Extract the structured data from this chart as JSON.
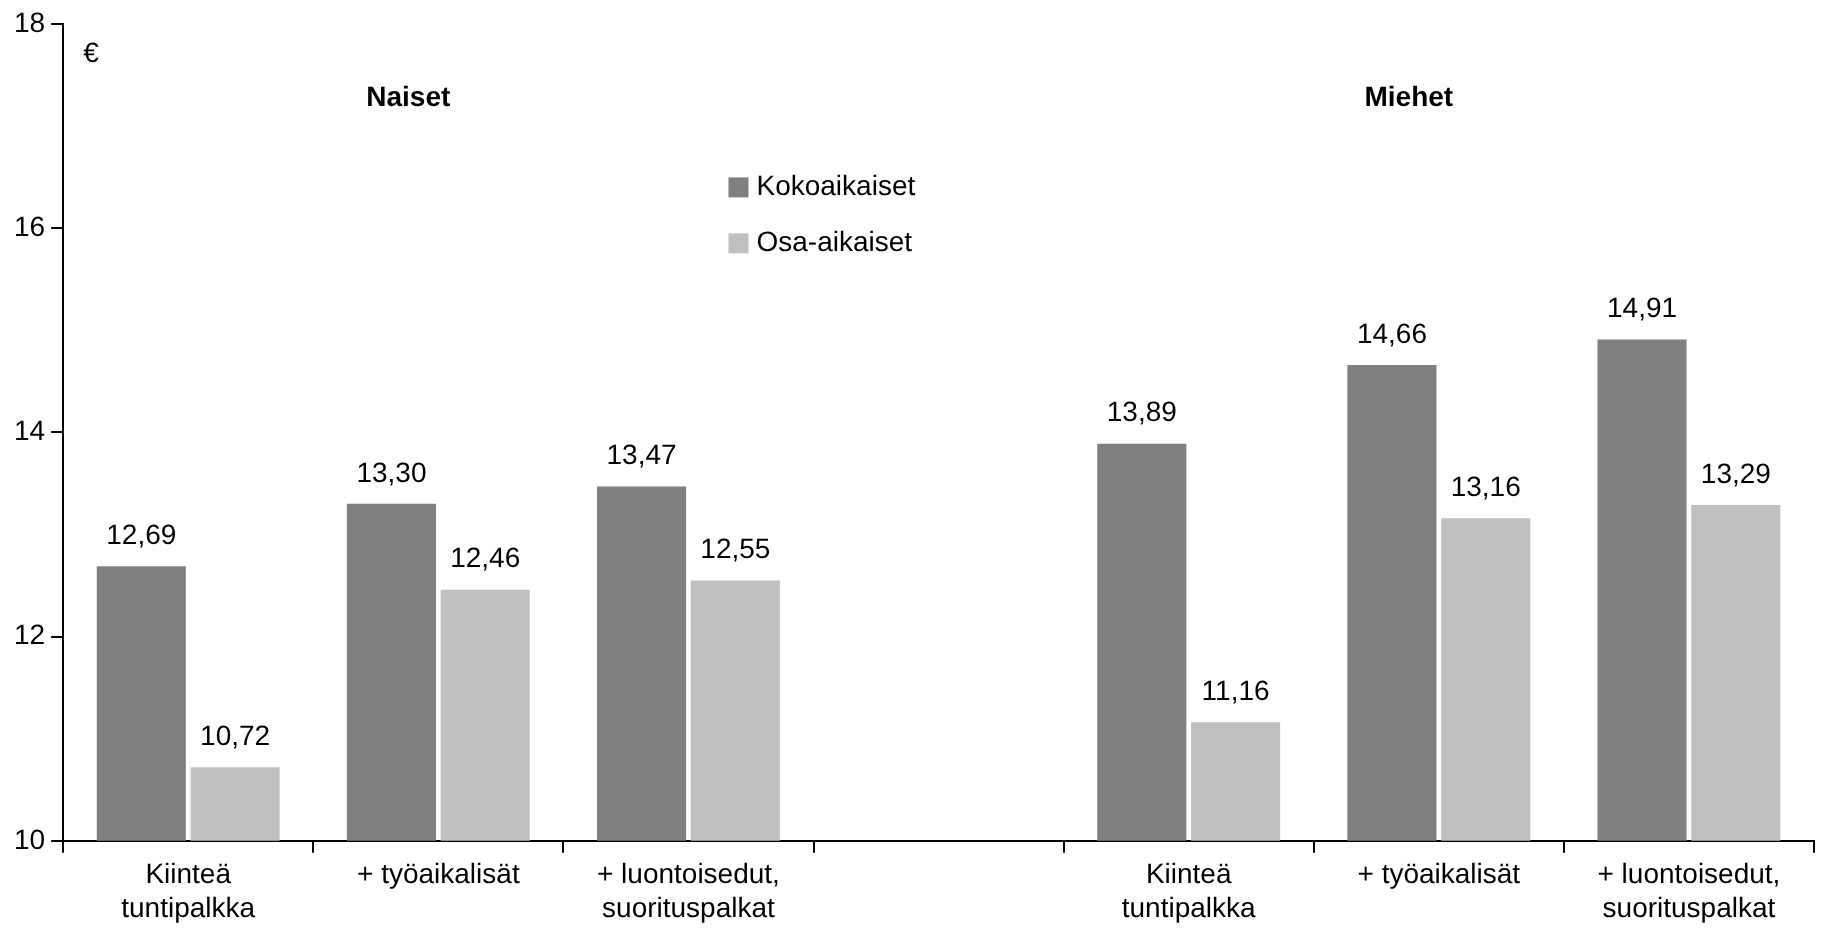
{
  "chart_data": {
    "type": "bar",
    "ylabel": "€",
    "annotations": [
      "Naiset",
      "Miehet"
    ],
    "categories": [
      "Kiinteä tuntipalkka",
      "+ työaikalisät",
      "+ luontoisedut, suorituspalkat",
      null,
      "Kiinteä tuntipalkka",
      "+ työaikalisät",
      "+ luontoisedut, suorituspalkat"
    ],
    "series": [
      {
        "name": "Kokoaikaiset",
        "color": "#808080",
        "values": [
          12.69,
          13.3,
          13.47,
          null,
          13.89,
          14.66,
          14.91
        ],
        "value_labels": [
          "12,69",
          "13,30",
          "13,47",
          null,
          "13,89",
          "14,66",
          "14,91"
        ]
      },
      {
        "name": "Osa-aikaiset",
        "color": "#c0c0c0",
        "values": [
          10.72,
          12.46,
          12.55,
          null,
          11.16,
          13.16,
          13.29
        ],
        "value_labels": [
          "10,72",
          "12,46",
          "12,55",
          null,
          "11,16",
          "13,16",
          "13,29"
        ]
      }
    ],
    "ylim": [
      10,
      18
    ],
    "yticks": [
      10,
      12,
      14,
      16,
      18
    ],
    "grid": false,
    "legend": "top"
  }
}
